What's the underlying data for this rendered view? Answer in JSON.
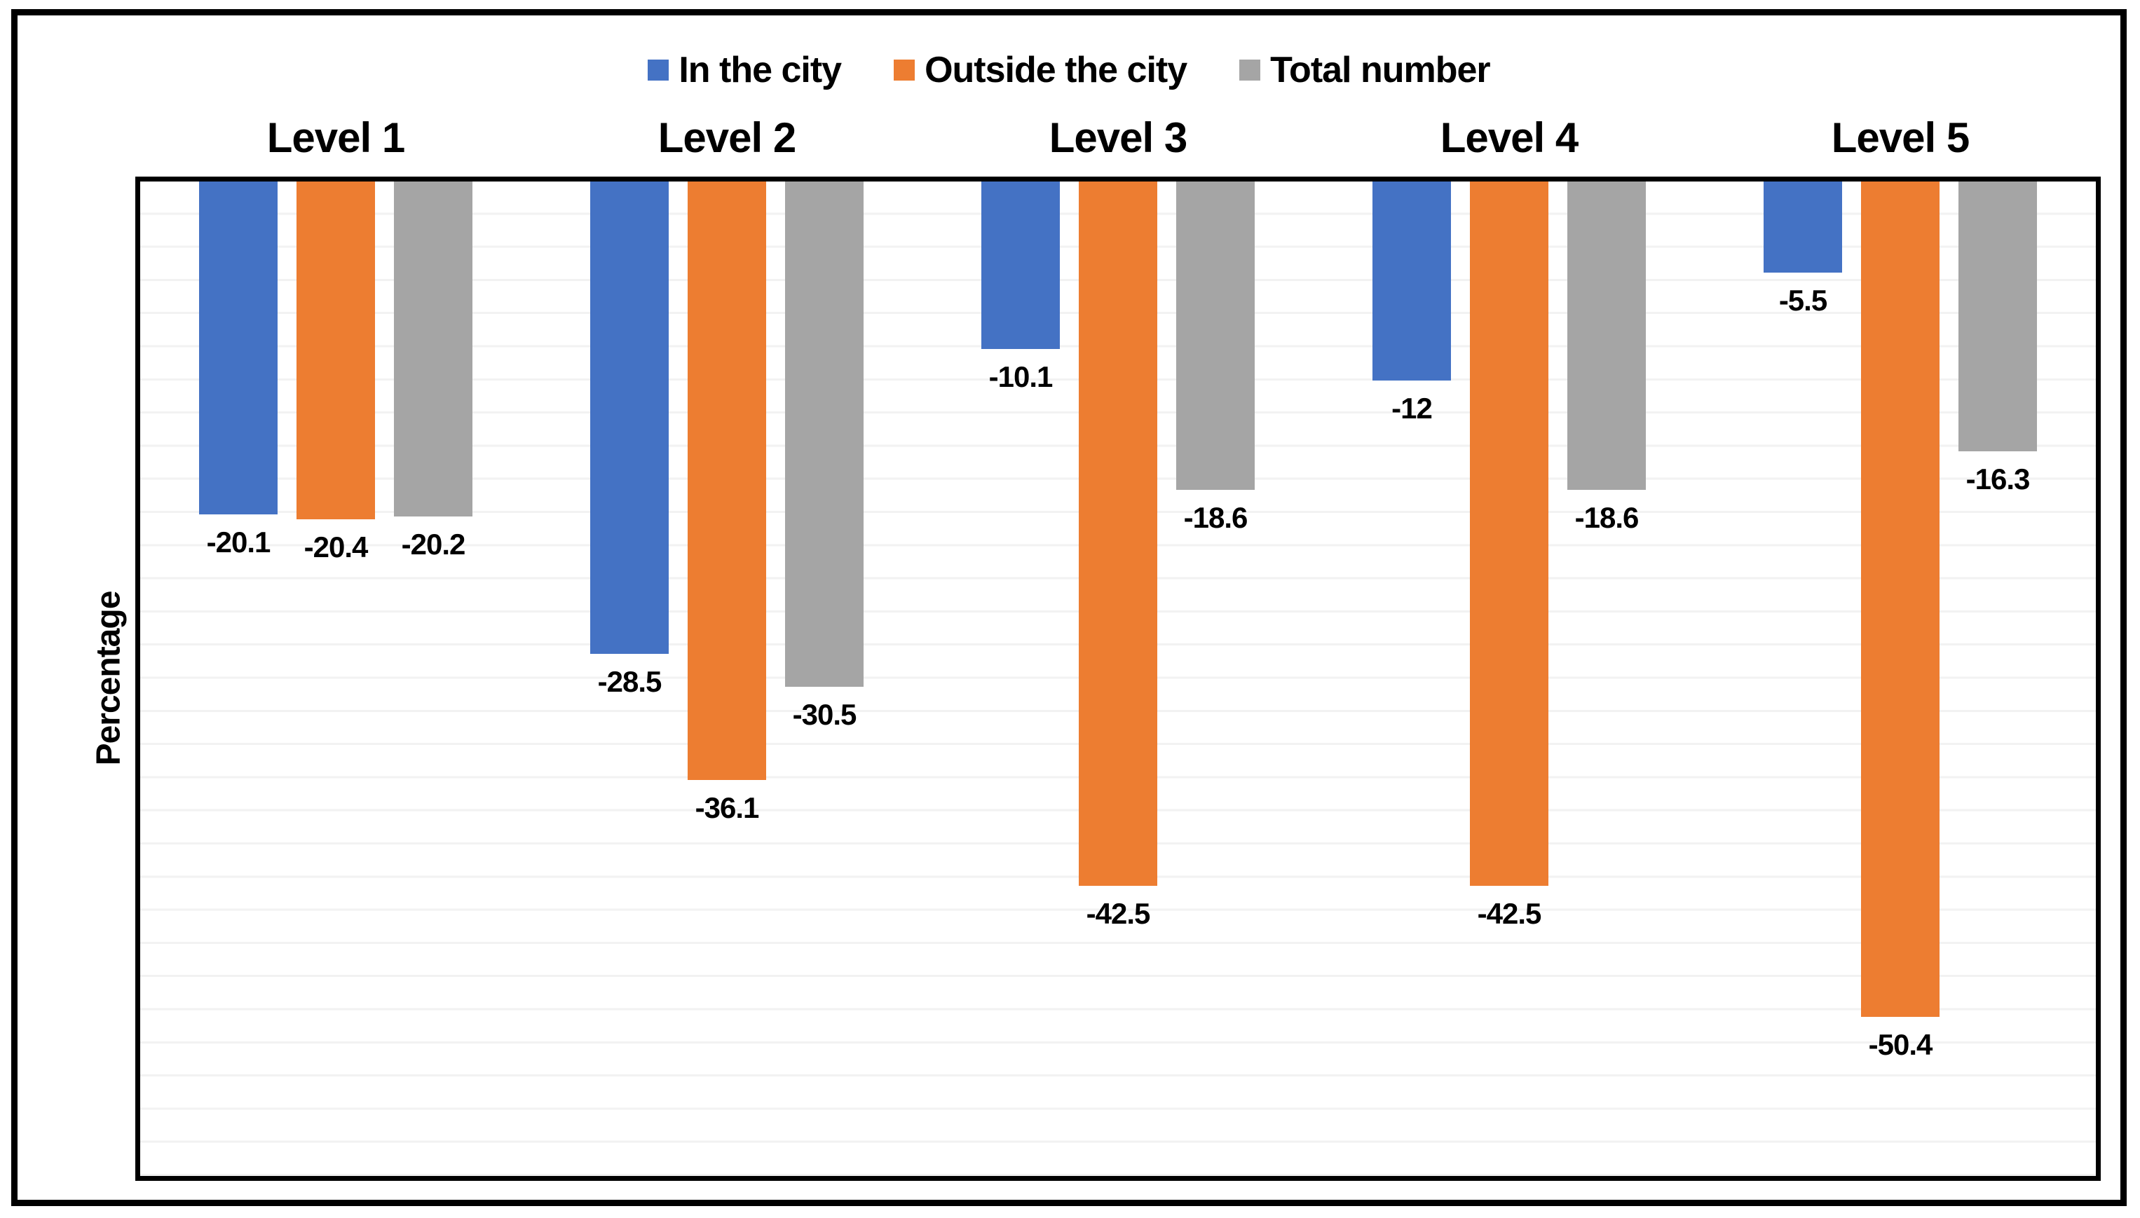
{
  "chart_data": {
    "type": "bar",
    "orientation": "vertical-negative",
    "title": "",
    "xlabel": "",
    "ylabel": "Percentage",
    "ylim": [
      -60,
      0
    ],
    "gridline_step": 2,
    "grid": true,
    "legend_position": "top",
    "y_tick_labels_visible": false,
    "categories": [
      "Level 1",
      "Level 2",
      "Level 3",
      "Level 4",
      "Level 5"
    ],
    "series": [
      {
        "name": "In the city",
        "color": "#4472C4",
        "values": [
          -20.1,
          -28.5,
          -10.1,
          -12,
          -5.5
        ],
        "labels": [
          "-20.1",
          "-28.5",
          "-10.1",
          "-12",
          "-5.5"
        ]
      },
      {
        "name": "Outside the city",
        "color": "#ED7D31",
        "values": [
          -20.4,
          -36.1,
          -42.5,
          -42.5,
          -50.4
        ],
        "labels": [
          "-20.4",
          "-36.1",
          "-42.5",
          "-42.5",
          "-50.4"
        ]
      },
      {
        "name": "Total number",
        "color": "#A5A5A5",
        "values": [
          -20.2,
          -30.5,
          -18.6,
          -18.6,
          -16.3
        ],
        "labels": [
          "-20.2",
          "-30.5",
          "-18.6",
          "-18.6",
          "-16.3"
        ]
      }
    ]
  },
  "styles": {
    "background": "#ffffff",
    "frame_color": "#000000",
    "axis_color": "#000000",
    "gridline_color": "#f2f2f2",
    "label_color": "#000000"
  }
}
